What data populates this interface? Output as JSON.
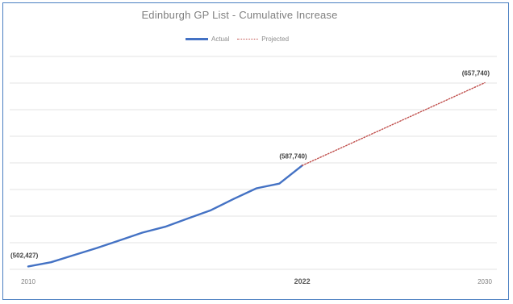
{
  "chart_data": {
    "type": "line",
    "title": "Edinburgh GP List - Cumulative Increase",
    "xlabel": "",
    "ylabel": "",
    "x": [
      2010,
      2011,
      2012,
      2013,
      2014,
      2015,
      2016,
      2017,
      2018,
      2019,
      2020,
      2021,
      2022,
      2030
    ],
    "xlim": [
      2010,
      2030
    ],
    "ylim": [
      500000,
      680000
    ],
    "grid": true,
    "legend": "top",
    "x_ticks": [
      "2010",
      "2022",
      "2030"
    ],
    "series": [
      {
        "name": "Actual",
        "color": "#4472c4",
        "style": "solid",
        "points": [
          [
            2010,
            502427
          ],
          [
            2011,
            506000
          ],
          [
            2012,
            512000
          ],
          [
            2013,
            518000
          ],
          [
            2014,
            524500
          ],
          [
            2015,
            531000
          ],
          [
            2016,
            536000
          ],
          [
            2017,
            543000
          ],
          [
            2018,
            550000
          ],
          [
            2019,
            559500
          ],
          [
            2020,
            568500
          ],
          [
            2021,
            572500
          ],
          [
            2022,
            587740
          ]
        ]
      },
      {
        "name": "Projected",
        "color": "#c0504d",
        "style": "dotted",
        "points": [
          [
            2022,
            587740
          ],
          [
            2030,
            657740
          ]
        ]
      }
    ],
    "data_labels": [
      {
        "x": 2010,
        "y": 502427,
        "text": "(502,427)",
        "position": "above-right"
      },
      {
        "x": 2022,
        "y": 587740,
        "text": "(587,740)",
        "position": "above-left"
      },
      {
        "x": 2030,
        "y": 657740,
        "text": "(657,740)",
        "position": "above-left"
      }
    ]
  }
}
